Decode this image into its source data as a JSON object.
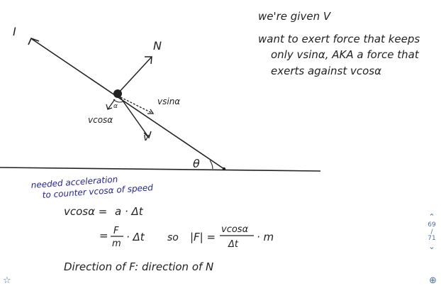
{
  "notes": {
    "line1": "we're given V",
    "line2": "want to exert force that keeps",
    "line3": "only vsinα, AKA a force that",
    "line4": "exerts against vcosα"
  },
  "labels": {
    "I": "I",
    "N": "N",
    "vsin": "vsinα",
    "vcos": "vcosα",
    "v": "v",
    "alpha": "α",
    "theta": "θ"
  },
  "blue_note": {
    "line1": "needed acceleration",
    "line2": "to counter vcosα of speed"
  },
  "equations": {
    "eq1_left": "vcosα =",
    "eq1_right": "a · Δt",
    "eq2_eq": "=",
    "eq2_num": "F",
    "eq2_den": "m",
    "eq2_rest": "· Δt",
    "so": "so",
    "absF": "|F| =",
    "frac2_num": "vcosα",
    "frac2_den": "Δt",
    "times_m": "· m",
    "direction": "Direction of F: direction of N"
  },
  "nav": {
    "up_icon": "chevron-up-icon",
    "page_current": "69",
    "page_total": "71",
    "down_icon": "chevron-down-icon"
  },
  "colors": {
    "ink": "#222222",
    "blue_ink": "#23239a",
    "ui_accent": "#4a6fa5"
  }
}
